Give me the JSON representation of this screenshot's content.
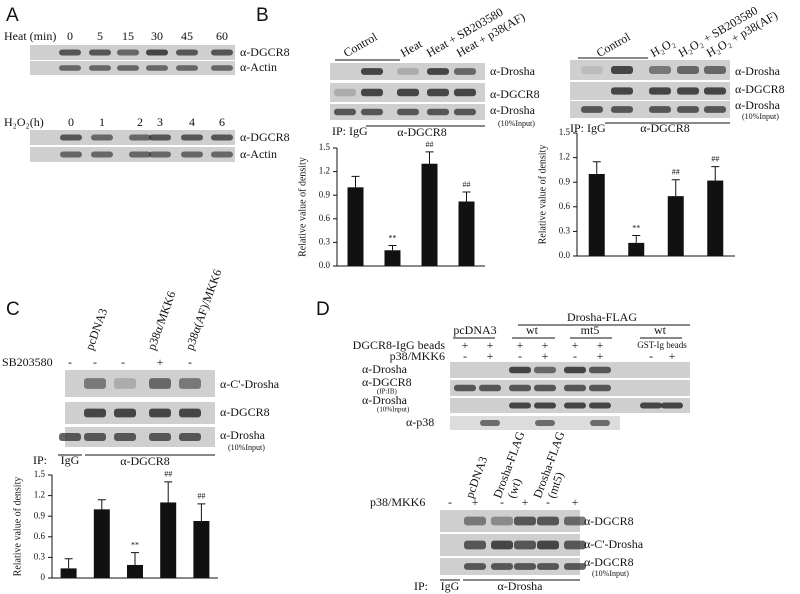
{
  "panels": {
    "A": {
      "letter": "A",
      "heat": {
        "label": "Heat (min)",
        "times": [
          0,
          5,
          15,
          30,
          45,
          60
        ],
        "blots": [
          "α-DGCR8",
          "α-Actin"
        ]
      },
      "h2o2": {
        "label": "H₂O₂(h)",
        "times": [
          0,
          1,
          2,
          3,
          4,
          6
        ],
        "blots": [
          "α-DGCR8",
          "α-Actin"
        ]
      }
    },
    "B_left": {
      "letter": "B",
      "conditions": [
        "Control",
        "Heat",
        "Heat + SB203580",
        "Heat + p38(AF)"
      ],
      "blots": [
        "α-Drosha",
        "α-DGCR8",
        "α-Drosha"
      ],
      "input_note": "(10%Input)",
      "ip": "IP: IgG",
      "ip_antibody": "α-DGCR8"
    },
    "B_right": {
      "conditions": [
        "Control",
        "H₂O₂",
        "H₂O₂ + SB203580",
        "H₂O₂ + p38(AF)"
      ],
      "blots": [
        "α-Drosha",
        "α-DGCR8",
        "α-Drosha"
      ],
      "input_note": "(10%Input)",
      "ip": "IP: IgG",
      "ip_antibody": "α-DGCR8"
    },
    "C": {
      "letter": "C",
      "conditions": [
        "pcDNA3",
        "p38α/MKK6",
        "p38α(AF)/MKK6"
      ],
      "treatment": "SB203580",
      "signs": [
        "-",
        "-",
        "-",
        "+",
        "-"
      ],
      "blots": [
        "α-C'-Drosha",
        "α-DGCR8",
        "α-Drosha"
      ],
      "input_note": "(10%Input)",
      "ip": "IP:",
      "ip_control": "IgG",
      "ip_antibody": "α-DGCR8"
    },
    "D_top": {
      "letter": "D",
      "group": "Drosha-FLAG",
      "columns": [
        "pcDNA3",
        "wt",
        "mt5",
        "wt"
      ],
      "beads": "DGCR8-IgG beads",
      "beads_signs": [
        "+",
        "+",
        "+",
        "+",
        "+",
        "+"
      ],
      "kinase": "p38/MKK6",
      "kinase_signs": [
        "-",
        "+",
        "-",
        "+",
        "-",
        "+",
        "-",
        "+"
      ],
      "alt_beads": "GST-Ig beads",
      "blots": [
        "α-Drosha",
        "α-DGCR8",
        "α-Drosha",
        "α-p38"
      ],
      "ipib_note": "(IP:IB)",
      "input_note": "(10%Input)"
    },
    "D_bottom": {
      "columns": [
        "pcDNA3",
        "Drosha-FLAG",
        "(wt)",
        "Drosha-FLAG",
        "(mt5)"
      ],
      "kinase": "p38/MKK6",
      "kinase_signs": [
        "-",
        "+",
        "-",
        "+",
        "-",
        "+"
      ],
      "blots": [
        "α-DGCR8",
        "α-C'-Drosha",
        "α-DGCR8"
      ],
      "input_note": "(10%Input)",
      "ip": "IP:",
      "ip_control": "IgG",
      "ip_antibody": "α-Drosha"
    }
  },
  "chart_data": [
    {
      "type": "bar",
      "ylabel": "Relative value of density",
      "color": "#111111",
      "values": [
        1.0,
        0.2,
        1.3,
        0.82
      ],
      "errors": [
        0.14,
        0.06,
        0.15,
        0.12
      ],
      "annotations": [
        null,
        "**",
        "##",
        "##"
      ],
      "ylim": [
        0,
        1.5
      ],
      "yticks": [
        {
          "value": 0,
          "label": "0.0"
        },
        0.3,
        0.6,
        0.9,
        1.2,
        1.5
      ]
    },
    {
      "type": "bar",
      "ylabel": "Relative value of density",
      "color": "#111111",
      "values": [
        1.0,
        0.16,
        0.73,
        0.92
      ],
      "errors": [
        0.15,
        0.09,
        0.2,
        0.17
      ],
      "annotations": [
        null,
        "**",
        "##",
        "##"
      ],
      "ylim": [
        0,
        1.5
      ],
      "yticks": [
        {
          "value": 0,
          "label": "0.0"
        },
        0.3,
        0.6,
        0.9,
        1.2,
        1.5
      ]
    },
    {
      "type": "bar",
      "ylabel": "Relative value of density",
      "color": "#111111",
      "values": [
        0.14,
        1.0,
        0.19,
        1.1,
        0.83
      ],
      "errors": [
        0.14,
        0.14,
        0.18,
        0.3,
        0.25
      ],
      "annotations": [
        null,
        null,
        "**",
        "##",
        "##"
      ],
      "ylim": [
        0,
        1.5
      ],
      "yticks": [
        0,
        0.3,
        0.6,
        0.9,
        1.2,
        1.5
      ]
    }
  ]
}
